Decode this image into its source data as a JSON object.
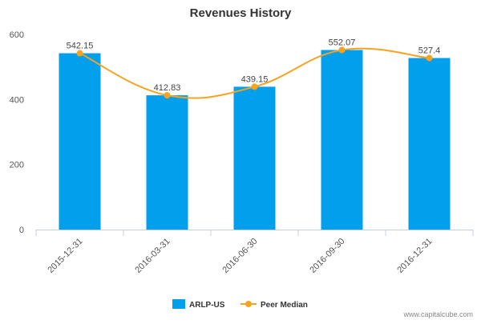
{
  "chart_data": {
    "type": "bar",
    "title": "Revenues History",
    "categories": [
      "2015-12-31",
      "2016-03-31",
      "2016-06-30",
      "2016-09-30",
      "2016-12-31"
    ],
    "series": [
      {
        "name": "ARLP-US",
        "kind": "bar",
        "color": "#019fec",
        "values": [
          542.15,
          412.83,
          439.15,
          552.07,
          527.4
        ]
      },
      {
        "name": "Peer Median",
        "kind": "line",
        "color": "#f7a320",
        "values": [
          542.15,
          412.83,
          439.15,
          552.07,
          527.4
        ]
      }
    ],
    "data_labels": [
      "542.15",
      "412.83",
      "439.15",
      "552.07",
      "527.4"
    ],
    "yticks": [
      "0",
      "200",
      "400",
      "600"
    ],
    "ylim": [
      0,
      600
    ],
    "grid": false,
    "legend_position": "bottom-center"
  },
  "credit": "www.capitalcube.com"
}
